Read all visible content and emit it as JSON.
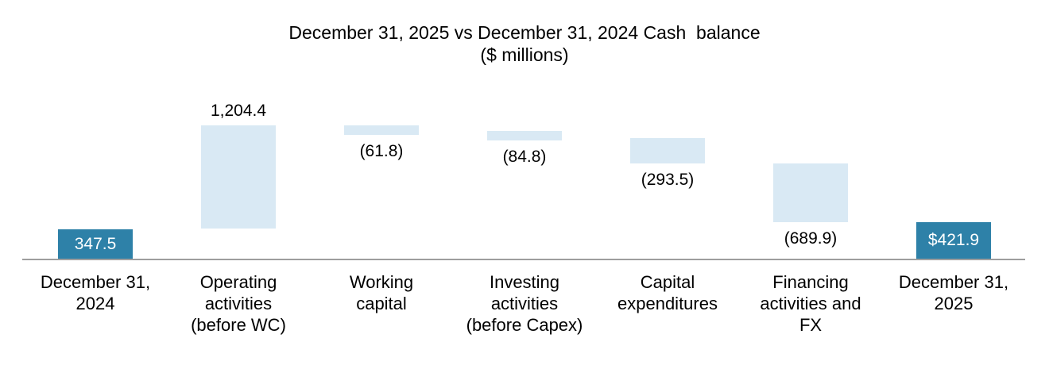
{
  "chart_data": {
    "type": "bar",
    "subtype": "waterfall",
    "title": "December 31, 2025 vs December 31, 2024 Cash  balance",
    "subtitle": "($ millions)",
    "unit": "$ millions",
    "axis": {
      "baseline": 0,
      "ymax": 1551.9,
      "grid": false,
      "legend": "none"
    },
    "start_total": 347.5,
    "end_total": 421.9,
    "columns": [
      {
        "category": "December 31,\n2024",
        "value": 347.5,
        "label": "347.5",
        "kind": "total",
        "label_position": "inside"
      },
      {
        "category": "Operating\nactivities\n(before WC)",
        "value": 1204.4,
        "label": "1,204.4",
        "kind": "increase",
        "label_position": "above"
      },
      {
        "category": "Working\ncapital",
        "value": -61.8,
        "label": "(61.8)",
        "kind": "decrease",
        "label_position": "below"
      },
      {
        "category": "Investing\nactivities\n(before Capex)",
        "value": -84.8,
        "label": "(84.8)",
        "kind": "decrease",
        "label_position": "below"
      },
      {
        "category": "Capital\nexpenditures",
        "value": -293.5,
        "label": "(293.5)",
        "kind": "decrease",
        "label_position": "below"
      },
      {
        "category": "Financing\nactivities and\nFX",
        "value": -689.9,
        "label": "(689.9)",
        "kind": "decrease",
        "label_position": "below"
      },
      {
        "category": "December 31,\n2025",
        "value": 421.9,
        "label": "$421.9",
        "kind": "total",
        "label_position": "inside"
      }
    ],
    "colors": {
      "total_bar": "#2E81A8",
      "delta_bar": "#D9E9F4",
      "inside_label_text": "#FFFFFF",
      "outside_label_text": "#000000",
      "axis_line": "#9E9E9E"
    }
  }
}
